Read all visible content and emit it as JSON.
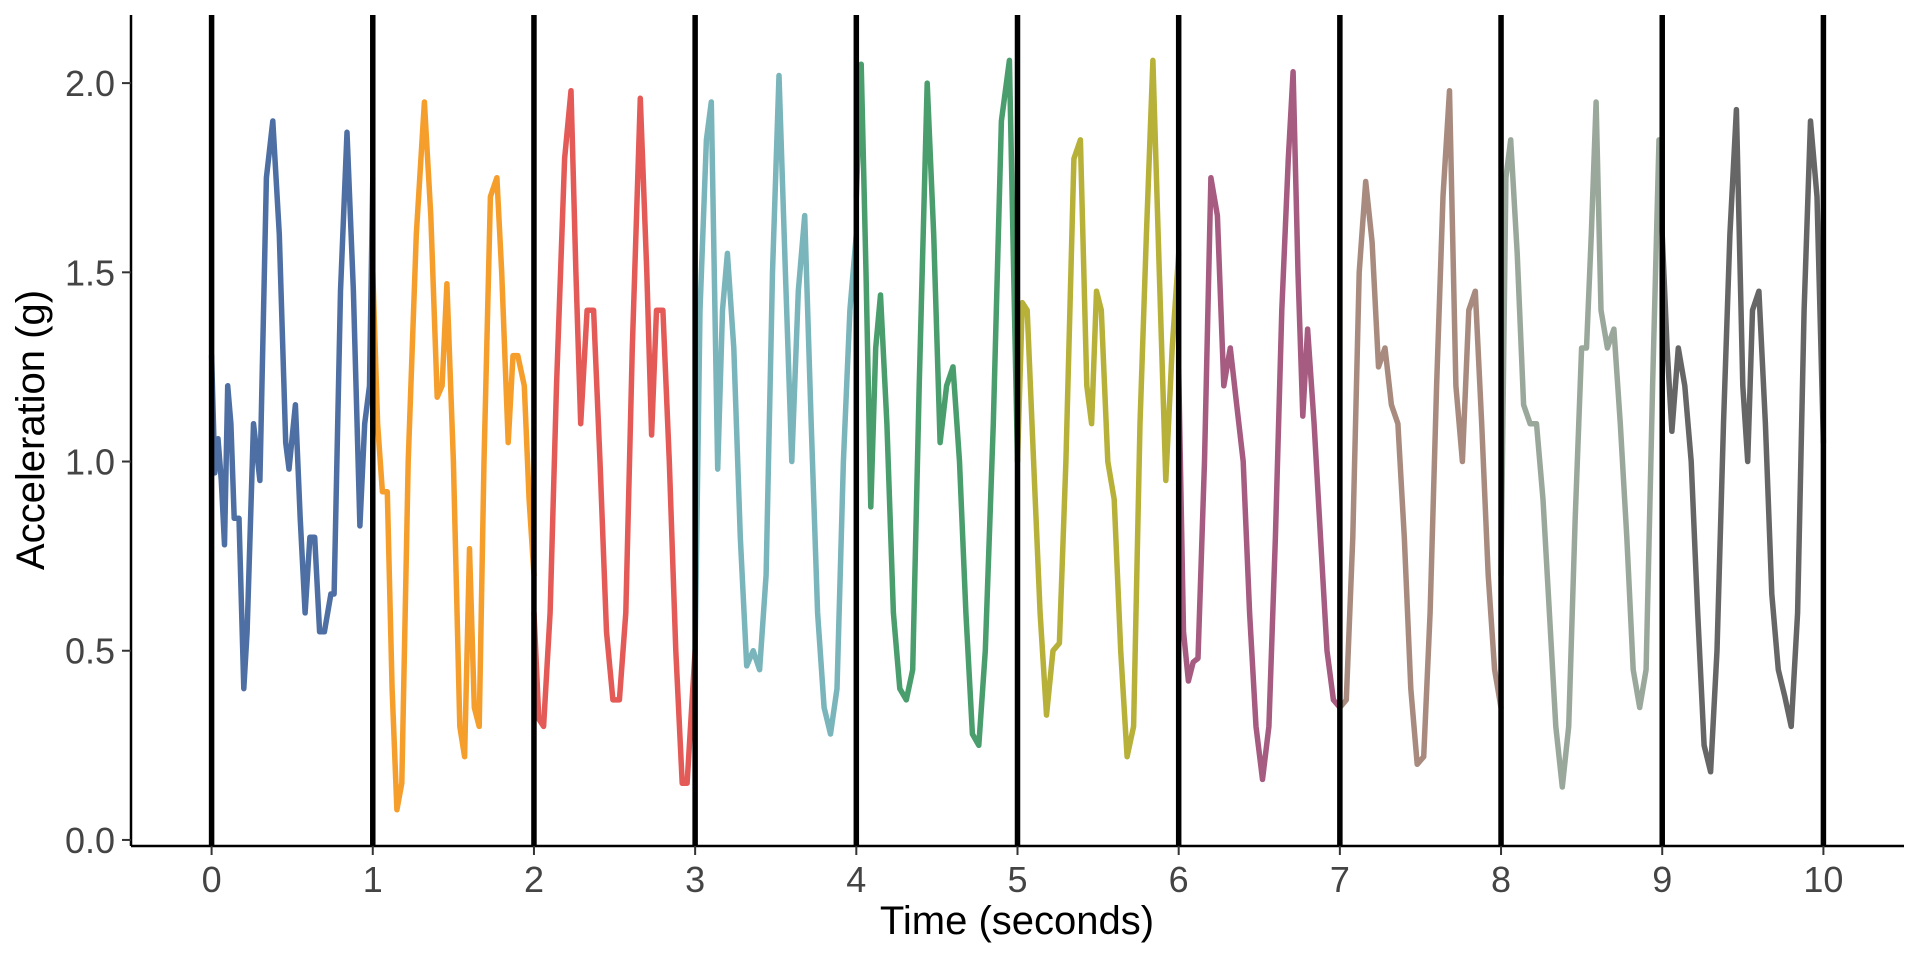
{
  "chart_data": {
    "type": "line",
    "xlabel": "Time (seconds)",
    "ylabel": "Acceleration (g)",
    "xlim": [
      -0.5,
      10.5
    ],
    "ylim": [
      -0.016,
      2.18
    ],
    "xticks": [
      0,
      1,
      2,
      3,
      4,
      5,
      6,
      7,
      8,
      9,
      10
    ],
    "yticks": [
      {
        "value": 0,
        "label": "0.0"
      },
      0.5,
      {
        "value": 1,
        "label": "1.0"
      },
      1.5,
      {
        "value": 2,
        "label": "2.0"
      }
    ],
    "vlines": [
      0,
      1,
      2,
      3,
      4,
      5,
      6,
      7,
      8,
      9,
      10
    ],
    "vline_color": "#000000",
    "grid": false,
    "series": [
      {
        "color": "#4e6fa3",
        "x": [
          0,
          0.02,
          0.04,
          0.06,
          0.08,
          0.1,
          0.12,
          0.14,
          0.17,
          0.2,
          0.22,
          0.26,
          0.3,
          0.34,
          0.38,
          0.42,
          0.46,
          0.48,
          0.52,
          0.55,
          0.58,
          0.61,
          0.64,
          0.67,
          0.7,
          0.74,
          0.76,
          0.8,
          0.84,
          0.88,
          0.92,
          0.95,
          0.98,
          1.0
        ],
        "values": [
          1.28,
          0.97,
          1.06,
          0.95,
          0.78,
          1.2,
          1.1,
          0.85,
          0.85,
          0.4,
          0.55,
          1.1,
          0.95,
          1.75,
          1.9,
          1.6,
          1.05,
          0.98,
          1.15,
          0.85,
          0.6,
          0.8,
          0.8,
          0.55,
          0.55,
          0.65,
          0.65,
          1.45,
          1.87,
          1.45,
          0.83,
          1.1,
          1.2,
          1.75
        ]
      },
      {
        "color": "#f59e2c",
        "x": [
          1.0,
          1.03,
          1.06,
          1.09,
          1.12,
          1.15,
          1.18,
          1.22,
          1.27,
          1.32,
          1.36,
          1.4,
          1.43,
          1.46,
          1.5,
          1.54,
          1.57,
          1.6,
          1.63,
          1.66,
          1.69,
          1.73,
          1.77,
          1.8,
          1.84,
          1.87,
          1.9,
          1.94,
          1.97,
          2.0
        ],
        "values": [
          1.5,
          1.1,
          0.92,
          0.92,
          0.4,
          0.08,
          0.15,
          1.0,
          1.6,
          1.95,
          1.65,
          1.17,
          1.2,
          1.47,
          1.0,
          0.3,
          0.22,
          0.77,
          0.35,
          0.3,
          1.0,
          1.7,
          1.75,
          1.5,
          1.05,
          1.28,
          1.28,
          1.2,
          0.9,
          0.7
        ]
      },
      {
        "color": "#e45a57",
        "x": [
          2.0,
          2.03,
          2.06,
          2.1,
          2.14,
          2.19,
          2.23,
          2.26,
          2.29,
          2.33,
          2.37,
          2.41,
          2.45,
          2.49,
          2.53,
          2.57,
          2.61,
          2.66,
          2.7,
          2.73,
          2.76,
          2.8,
          2.84,
          2.88,
          2.92,
          2.95,
          3.0
        ],
        "values": [
          0.6,
          0.32,
          0.3,
          0.6,
          1.2,
          1.8,
          1.98,
          1.5,
          1.1,
          1.4,
          1.4,
          1.0,
          0.55,
          0.37,
          0.37,
          0.6,
          1.3,
          1.96,
          1.5,
          1.07,
          1.4,
          1.4,
          1.0,
          0.5,
          0.15,
          0.15,
          0.5
        ]
      },
      {
        "color": "#79b5bb",
        "x": [
          3.0,
          3.03,
          3.07,
          3.1,
          3.14,
          3.17,
          3.2,
          3.24,
          3.28,
          3.32,
          3.36,
          3.4,
          3.44,
          3.48,
          3.52,
          3.56,
          3.6,
          3.64,
          3.68,
          3.72,
          3.76,
          3.8,
          3.84,
          3.88,
          3.92,
          3.96,
          4.0
        ],
        "values": [
          0.5,
          1.4,
          1.85,
          1.95,
          0.98,
          1.4,
          1.55,
          1.3,
          0.8,
          0.46,
          0.5,
          0.45,
          0.7,
          1.5,
          2.02,
          1.5,
          1.0,
          1.45,
          1.65,
          1.1,
          0.6,
          0.35,
          0.28,
          0.4,
          1.0,
          1.4,
          1.6
        ]
      },
      {
        "color": "#4a9d6d",
        "x": [
          4.0,
          4.03,
          4.06,
          4.09,
          4.12,
          4.15,
          4.19,
          4.23,
          4.27,
          4.31,
          4.35,
          4.39,
          4.44,
          4.48,
          4.52,
          4.56,
          4.6,
          4.64,
          4.68,
          4.72,
          4.76,
          4.8,
          4.85,
          4.9,
          4.95,
          5.0
        ],
        "values": [
          1.7,
          2.05,
          1.5,
          0.88,
          1.3,
          1.44,
          1.1,
          0.6,
          0.4,
          0.37,
          0.45,
          1.2,
          2.0,
          1.6,
          1.05,
          1.2,
          1.25,
          1.0,
          0.6,
          0.28,
          0.25,
          0.5,
          1.1,
          1.9,
          2.06,
          1.0
        ]
      },
      {
        "color": "#b7b13a",
        "x": [
          5.0,
          5.03,
          5.06,
          5.1,
          5.14,
          5.18,
          5.22,
          5.26,
          5.3,
          5.35,
          5.39,
          5.43,
          5.46,
          5.49,
          5.52,
          5.56,
          5.6,
          5.64,
          5.68,
          5.72,
          5.76,
          5.8,
          5.84,
          5.88,
          5.92,
          5.96,
          6.0
        ],
        "values": [
          1.0,
          1.42,
          1.4,
          1.0,
          0.6,
          0.33,
          0.5,
          0.52,
          1.0,
          1.8,
          1.85,
          1.2,
          1.1,
          1.45,
          1.4,
          1.0,
          0.9,
          0.5,
          0.22,
          0.3,
          1.1,
          1.6,
          2.06,
          1.5,
          0.95,
          1.3,
          1.55
        ]
      },
      {
        "color": "#a65b80",
        "x": [
          6.0,
          6.03,
          6.06,
          6.09,
          6.12,
          6.16,
          6.2,
          6.24,
          6.28,
          6.32,
          6.36,
          6.4,
          6.44,
          6.48,
          6.52,
          6.56,
          6.6,
          6.64,
          6.68,
          6.71,
          6.74,
          6.77,
          6.8,
          6.84,
          6.88,
          6.92,
          6.96,
          7.0
        ],
        "values": [
          1.24,
          0.55,
          0.42,
          0.47,
          0.48,
          1.0,
          1.75,
          1.65,
          1.2,
          1.3,
          1.15,
          1.0,
          0.6,
          0.3,
          0.16,
          0.3,
          0.8,
          1.4,
          1.8,
          2.03,
          1.5,
          1.12,
          1.35,
          1.1,
          0.8,
          0.5,
          0.37,
          0.35
        ]
      },
      {
        "color": "#a88b7e",
        "x": [
          7.0,
          7.04,
          7.08,
          7.12,
          7.16,
          7.2,
          7.24,
          7.28,
          7.32,
          7.36,
          7.4,
          7.44,
          7.48,
          7.52,
          7.56,
          7.6,
          7.64,
          7.68,
          7.72,
          7.76,
          7.8,
          7.84,
          7.88,
          7.92,
          7.96,
          8.0
        ],
        "values": [
          0.35,
          0.37,
          0.8,
          1.5,
          1.74,
          1.58,
          1.25,
          1.3,
          1.15,
          1.1,
          0.8,
          0.4,
          0.2,
          0.22,
          0.6,
          1.2,
          1.7,
          1.98,
          1.2,
          1.0,
          1.4,
          1.45,
          1.1,
          0.7,
          0.45,
          0.35
        ]
      },
      {
        "color": "#9aa89b",
        "x": [
          8.0,
          8.03,
          8.06,
          8.1,
          8.14,
          8.18,
          8.22,
          8.26,
          8.3,
          8.34,
          8.38,
          8.42,
          8.46,
          8.5,
          8.53,
          8.56,
          8.59,
          8.62,
          8.66,
          8.7,
          8.74,
          8.78,
          8.82,
          8.86,
          8.9,
          8.94,
          8.98,
          9.0
        ],
        "values": [
          0.7,
          1.75,
          1.85,
          1.55,
          1.15,
          1.1,
          1.1,
          0.9,
          0.6,
          0.3,
          0.14,
          0.3,
          0.85,
          1.3,
          1.3,
          1.6,
          1.95,
          1.4,
          1.3,
          1.35,
          1.1,
          0.8,
          0.45,
          0.35,
          0.45,
          1.2,
          1.85,
          1.6
        ]
      },
      {
        "color": "#666666",
        "x": [
          9.0,
          9.03,
          9.06,
          9.1,
          9.14,
          9.18,
          9.22,
          9.26,
          9.3,
          9.34,
          9.38,
          9.42,
          9.46,
          9.5,
          9.53,
          9.56,
          9.6,
          9.64,
          9.68,
          9.72,
          9.76,
          9.8,
          9.84,
          9.88,
          9.92,
          9.96,
          10.0
        ],
        "values": [
          1.6,
          1.3,
          1.08,
          1.3,
          1.2,
          1.0,
          0.6,
          0.25,
          0.18,
          0.5,
          1.1,
          1.6,
          1.93,
          1.2,
          1.0,
          1.4,
          1.45,
          1.1,
          0.65,
          0.45,
          0.38,
          0.3,
          0.6,
          1.4,
          1.9,
          1.7,
          1.05
        ]
      }
    ]
  }
}
